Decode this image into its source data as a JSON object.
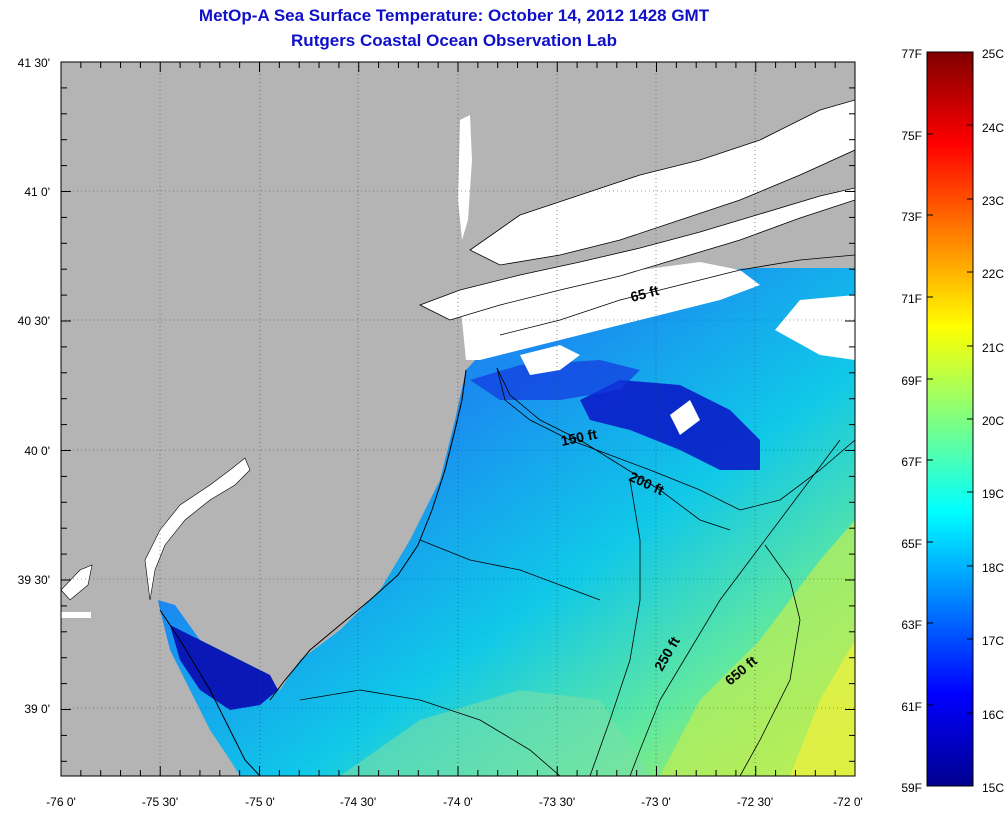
{
  "title": "MetOp-A Sea Surface Temperature:  October 14, 2012 1428 GMT",
  "subtitle": "Rutgers Coastal Ocean Observation Lab",
  "map": {
    "lat_labels": [
      "41 30'",
      "41 0'",
      "40 30'",
      "40 0'",
      "39 30'",
      "39 0'"
    ],
    "lon_labels": [
      "-76 0'",
      "-75 30'",
      "-75 0'",
      "-74 30'",
      "-74 0'",
      "-73 30'",
      "-73 0'",
      "-72 30'",
      "-72 0'"
    ],
    "contours": [
      {
        "label": "65 ft"
      },
      {
        "label": "150 ft"
      },
      {
        "label": "200 ft"
      },
      {
        "label": "250 ft"
      },
      {
        "label": "650 ft"
      }
    ],
    "colors": {
      "land": "#b4b4b4",
      "cloud": "#ffffff",
      "coast": "#000000"
    }
  },
  "colorbar": {
    "fahrenheit": [
      "77F",
      "75F",
      "73F",
      "71F",
      "69F",
      "67F",
      "65F",
      "63F",
      "61F",
      "59F"
    ],
    "celsius": [
      "25C",
      "24C",
      "23C",
      "22C",
      "21C",
      "20C",
      "19C",
      "18C",
      "17C",
      "16C",
      "15C"
    ],
    "colormap": [
      "#00008f",
      "#0000ff",
      "#0080ff",
      "#00ffff",
      "#80ff80",
      "#ffff00",
      "#ff8000",
      "#ff0000",
      "#800000"
    ]
  }
}
